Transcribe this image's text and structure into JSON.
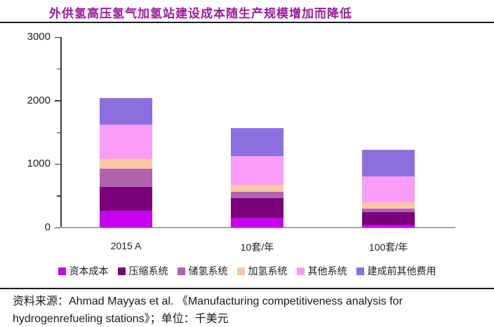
{
  "title": "外供氢高压氢气加氢站建设成本随生产规模增加而降低",
  "title_color": "#9B1B9E",
  "chart_data": {
    "type": "bar",
    "stacked": true,
    "title": "外供氢高压氢气加氢站建设成本随生产规模增加而降低",
    "unit": "千美元",
    "categories": [
      "2015 A",
      "10套/年",
      "100套/年"
    ],
    "series": [
      {
        "name": "资本成本",
        "color": "#C603EC",
        "values": [
          270,
          150,
          40
        ]
      },
      {
        "name": "压缩系统",
        "color": "#7A007C",
        "values": [
          375,
          310,
          205
        ]
      },
      {
        "name": "储氢系统",
        "color": "#B163B0",
        "values": [
          280,
          100,
          55
        ]
      },
      {
        "name": "加氢系统",
        "color": "#F8C8A2",
        "values": [
          155,
          110,
          100
        ]
      },
      {
        "name": "其他系统",
        "color": "#FB9DF6",
        "values": [
          545,
          455,
          400
        ]
      },
      {
        "name": "建成前其他费用",
        "color": "#8C6FDF",
        "values": [
          420,
          445,
          425
        ]
      }
    ],
    "totals": [
      2045,
      1570,
      1225
    ],
    "ylim": [
      0,
      3000
    ],
    "ytick_step": 1000,
    "minor_tick_step": 500,
    "ytick_labels": [
      "0",
      "1000",
      "2000",
      "3000"
    ],
    "legend_position": "bottom",
    "grid": false
  },
  "source": {
    "text": "资料来源：Ahmad Mayyas et al. 《Manufacturing competitiveness analysis for hydrogenrefueling stations》；单位：千美元"
  }
}
